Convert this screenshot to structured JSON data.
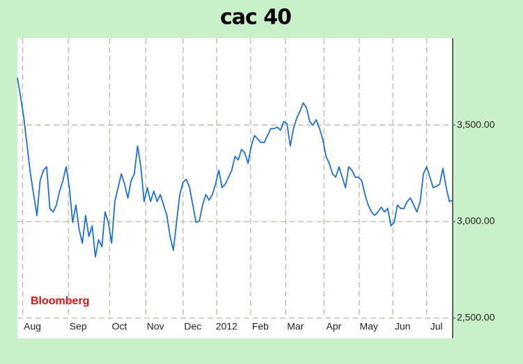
{
  "chart_data": {
    "type": "line",
    "title": "cac 40",
    "source": "Bloomberg",
    "series": [
      {
        "color": "#1a6fd8",
        "values": [
          3745,
          3644,
          3536,
          3392,
          3248,
          3140,
          3032,
          3212,
          3266,
          3284,
          3068,
          3050,
          3086,
          3158,
          3212,
          3284,
          3176,
          2996,
          3086,
          2960,
          2888,
          3032,
          2924,
          2978,
          2817,
          2906,
          2870,
          3050,
          2996,
          2888,
          3104,
          3176,
          3248,
          3194,
          3122,
          3212,
          3248,
          3392,
          3284,
          3104,
          3176,
          3104,
          3158,
          3104,
          3140,
          3086,
          3032,
          2924,
          2852,
          2996,
          3140,
          3205,
          3219,
          3176,
          3086,
          2996,
          3003,
          3086,
          3140,
          3111,
          3140,
          3194,
          3266,
          3176,
          3194,
          3230,
          3266,
          3338,
          3320,
          3374,
          3356,
          3302,
          3392,
          3446,
          3428,
          3410,
          3410,
          3446,
          3482,
          3482,
          3489,
          3474,
          3518,
          3507,
          3392,
          3482,
          3536,
          3572,
          3615,
          3590,
          3518,
          3500,
          3528,
          3482,
          3428,
          3338,
          3302,
          3248,
          3230,
          3284,
          3230,
          3176,
          3284,
          3266,
          3230,
          3230,
          3212,
          3140,
          3086,
          3050,
          3032,
          3050,
          3075,
          3050,
          3068,
          2978,
          2996,
          3086,
          3068,
          3068,
          3104,
          3122,
          3086,
          3050,
          3104,
          3248,
          3284,
          3230,
          3176,
          3183,
          3194,
          3276,
          3176,
          3104,
          3111
        ]
      }
    ],
    "xlim": [
      0,
      134
    ],
    "xticks": [
      {
        "value": 1.6,
        "label": "Aug"
      },
      {
        "value": 15.7,
        "label": "Sep"
      },
      {
        "value": 28.4,
        "label": "Oct"
      },
      {
        "value": 39.5,
        "label": "Nov"
      },
      {
        "value": 51,
        "label": "Dec"
      },
      {
        "value": 61.4,
        "label": "2012"
      },
      {
        "value": 71.8,
        "label": "Feb"
      },
      {
        "value": 82.6,
        "label": "Mar"
      },
      {
        "value": 94.4,
        "label": "Apr"
      },
      {
        "value": 105.2,
        "label": "May"
      },
      {
        "value": 115.6,
        "label": "Jun"
      },
      {
        "value": 126,
        "label": "Jul"
      }
    ],
    "ylim": [
      2500,
      3950
    ],
    "yticks": [
      {
        "value": 2500,
        "label": "2,500.00"
      },
      {
        "value": 3000,
        "label": "3,000.00"
      },
      {
        "value": 3500,
        "label": "3,500.00"
      }
    ],
    "grid": true
  }
}
